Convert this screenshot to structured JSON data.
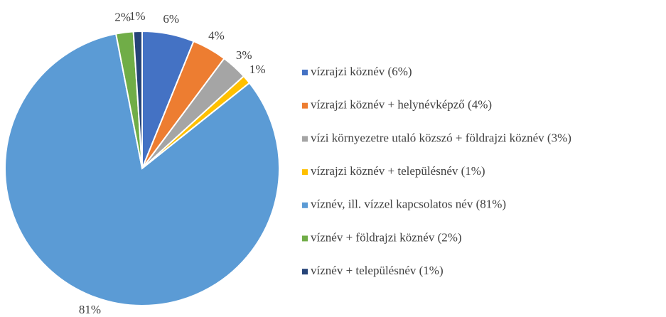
{
  "chart_data": {
    "type": "pie",
    "categories": [
      "vízrajzi köznév (6%)",
      "vízrajzi köznév + helynévképző (4%)",
      "vízi környezetre utaló közszó + földrajzi köznév (3%)",
      "vízrajzi köznév + településnév (1%)",
      "víznév, ill. vízzel kapcsolatos név (81%)",
      "víznév + földrajzi köznév (2%)",
      "víznév + településnév (1%)"
    ],
    "values": [
      6,
      4,
      3,
      1,
      81,
      2,
      1
    ],
    "value_labels": [
      "6%",
      "4%",
      "3%",
      "1%",
      "81%",
      "2%",
      "1%"
    ],
    "colors": [
      "#4472c4",
      "#ed7d31",
      "#a5a5a5",
      "#ffc000",
      "#5b9bd5",
      "#70ad47",
      "#264478"
    ],
    "legend": "right"
  }
}
